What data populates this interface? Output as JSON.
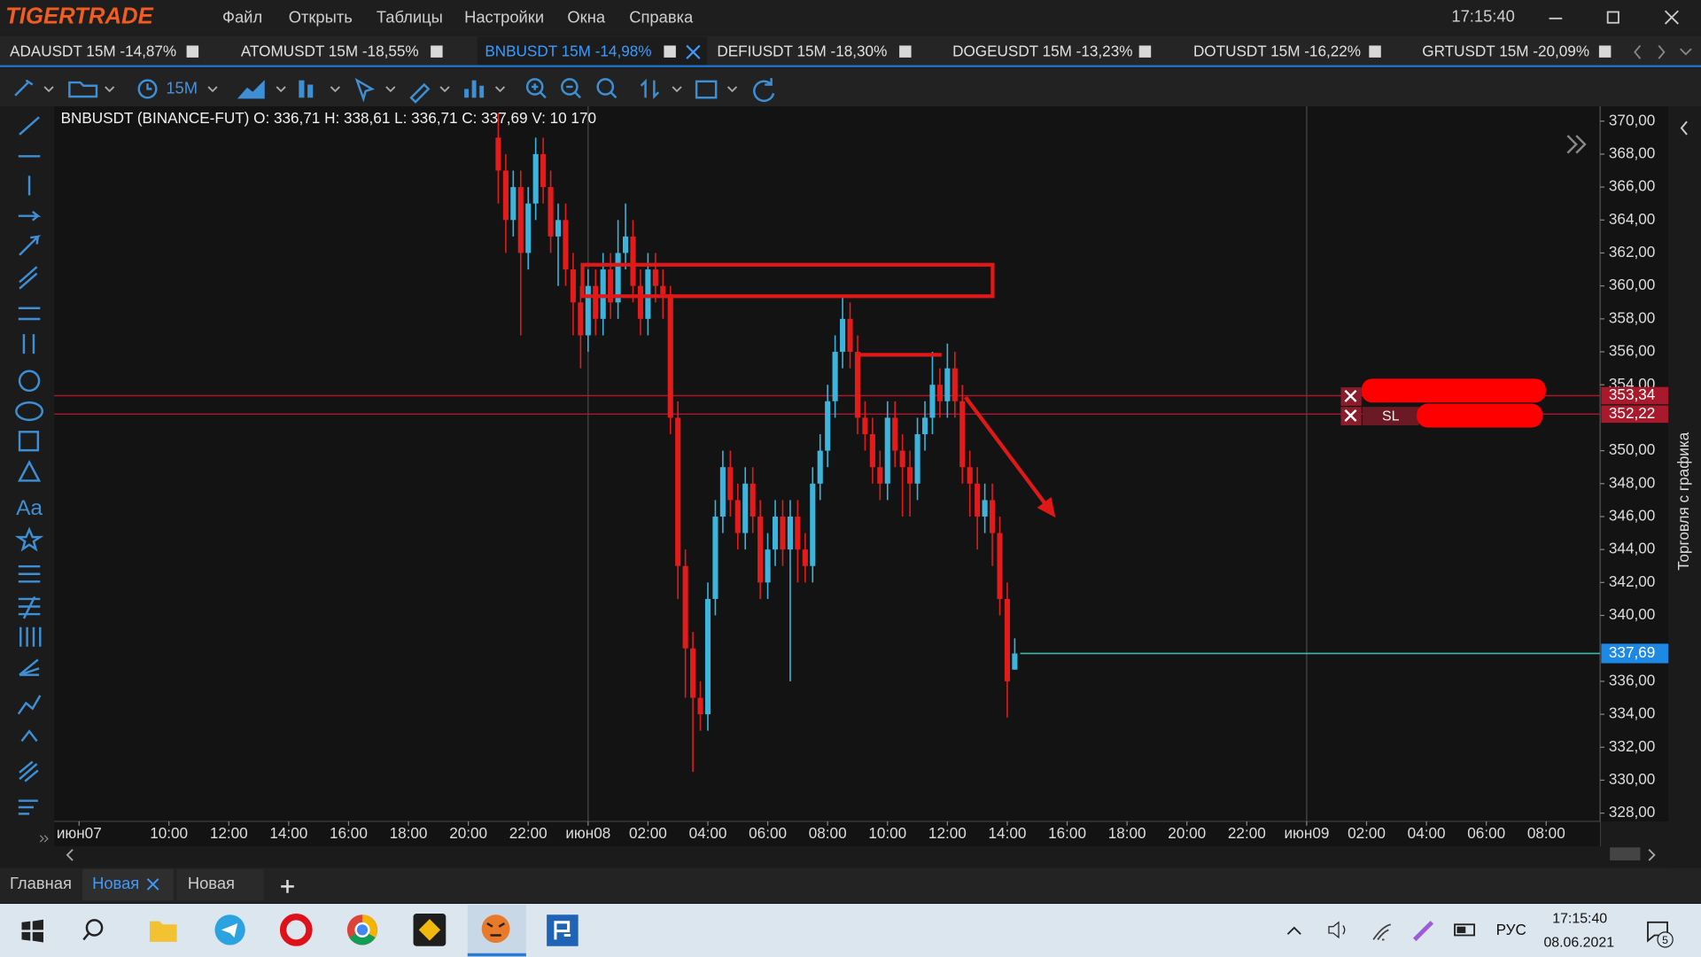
{
  "app": {
    "logo": "TIGERTRADE",
    "menu": [
      "Файл",
      "Открыть",
      "Таблицы",
      "Настройки",
      "Окна",
      "Справка"
    ],
    "clock": "17:15:40"
  },
  "tabs": [
    "ADAUSDT 15M -14,87%",
    "ATOMUSDT 15M -18,55%",
    "BNBUSDT 15M -14,98%",
    "DEFIUSDT 15M -18,30%",
    "DOGEUSDT 15M -13,23%",
    "DOTUSDT 15M -16,22%",
    "GRTUSDT 15M -20,09%"
  ],
  "toolbar": {
    "timeframe": "15M"
  },
  "chart_data": {
    "type": "candlestick",
    "title": "BNBUSDT (BINANCE-FUT)  O: 336,71  H: 338,61  L: 336,71  C: 337,69  V: 10 170",
    "up_color": "#3cb4dc",
    "down_color": "#e31b1b",
    "x": [
      21,
      21.25,
      21.5,
      21.75,
      22,
      22.25,
      22.5,
      22.75,
      23,
      23.25,
      23.5,
      23.75,
      24,
      24.25,
      24.5,
      24.75,
      25,
      25.25,
      25.5,
      25.75,
      26,
      26.25,
      26.5,
      26.75,
      27,
      27.25,
      27.5,
      27.75,
      28,
      28.25,
      28.5,
      28.75,
      29,
      29.25,
      29.5,
      29.75,
      30,
      30.25,
      30.5,
      30.75,
      31,
      31.25,
      31.5,
      31.75,
      32,
      32.25,
      32.5,
      32.75,
      33,
      33.25,
      33.5,
      33.75,
      34,
      34.25,
      34.5,
      34.75,
      35,
      35.25,
      35.5,
      35.75,
      36,
      36.25,
      36.5,
      36.75,
      37,
      37.25,
      37.5,
      37.75,
      38,
      38.25
    ],
    "ohlc": [
      [
        369,
        370.5,
        365,
        367
      ],
      [
        367,
        368,
        362,
        364
      ],
      [
        364,
        367,
        363,
        366
      ],
      [
        366,
        367,
        357,
        362
      ],
      [
        362,
        366,
        361,
        365
      ],
      [
        365,
        369,
        364,
        368
      ],
      [
        368,
        369,
        365,
        366
      ],
      [
        366,
        367,
        362,
        363
      ],
      [
        363,
        365,
        360,
        364
      ],
      [
        364,
        365,
        360,
        361
      ],
      [
        361,
        362,
        357,
        359
      ],
      [
        359,
        360,
        355,
        357
      ],
      [
        357,
        361,
        356,
        360
      ],
      [
        360,
        361,
        357,
        358
      ],
      [
        358,
        362,
        357,
        361
      ],
      [
        361,
        362,
        358,
        359
      ],
      [
        359,
        364,
        358,
        362
      ],
      [
        362,
        365,
        361,
        363
      ],
      [
        363,
        364,
        359,
        360
      ],
      [
        360,
        361,
        357,
        358
      ],
      [
        358,
        362,
        357,
        361
      ],
      [
        361,
        362,
        359,
        360
      ],
      [
        360,
        361,
        358,
        359.5
      ],
      [
        359.5,
        360,
        351,
        352
      ],
      [
        352,
        353,
        341,
        343
      ],
      [
        343,
        344,
        335,
        338
      ],
      [
        338,
        339,
        330.5,
        335
      ],
      [
        335,
        336,
        333,
        334
      ],
      [
        334,
        342,
        333,
        341
      ],
      [
        341,
        347,
        340,
        346
      ],
      [
        346,
        350,
        345,
        349
      ],
      [
        349,
        350,
        346,
        347
      ],
      [
        347,
        348,
        344,
        345
      ],
      [
        345,
        349,
        344,
        348
      ],
      [
        348,
        349,
        345,
        346
      ],
      [
        346,
        347,
        341,
        342
      ],
      [
        342,
        345,
        341,
        344
      ],
      [
        344,
        347,
        343,
        346
      ],
      [
        346,
        347,
        343,
        344
      ],
      [
        344,
        347,
        336,
        346
      ],
      [
        346,
        347,
        342,
        344
      ],
      [
        344,
        345,
        342,
        343
      ],
      [
        343,
        349,
        342,
        348
      ],
      [
        348,
        351,
        347,
        350
      ],
      [
        350,
        354,
        349,
        353
      ],
      [
        353,
        357,
        352,
        356
      ],
      [
        356,
        359.3,
        355,
        358
      ],
      [
        358,
        359,
        355,
        356
      ],
      [
        356,
        357,
        351,
        352
      ],
      [
        352,
        353,
        350,
        351
      ],
      [
        351,
        352,
        348,
        349
      ],
      [
        349,
        350,
        347,
        348
      ],
      [
        348,
        353,
        347,
        352
      ],
      [
        352,
        353,
        349,
        350
      ],
      [
        350,
        351,
        346,
        349
      ],
      [
        349,
        350,
        346,
        348
      ],
      [
        348,
        352,
        347,
        351
      ],
      [
        351,
        353,
        350,
        352
      ],
      [
        352,
        356,
        351,
        354
      ],
      [
        354,
        355,
        352,
        353
      ],
      [
        353,
        356.5,
        352,
        355
      ],
      [
        355,
        356,
        352,
        353
      ],
      [
        353,
        354,
        348,
        349
      ],
      [
        349,
        350,
        346,
        348
      ],
      [
        348,
        349,
        344,
        346
      ],
      [
        346,
        348,
        345,
        347
      ],
      [
        347,
        348,
        343,
        345
      ],
      [
        345,
        346,
        340,
        341
      ],
      [
        341,
        342,
        333.8,
        336
      ],
      [
        336.71,
        338.61,
        336.71,
        337.69
      ]
    ],
    "xlim": [
      6.17,
      57.8
    ],
    "xticks": [
      {
        "value": 7,
        "label": "июн07"
      },
      {
        "value": 10,
        "label": "10:00"
      },
      {
        "value": 12,
        "label": "12:00"
      },
      {
        "value": 14,
        "label": "14:00"
      },
      {
        "value": 16,
        "label": "16:00"
      },
      {
        "value": 18,
        "label": "18:00"
      },
      {
        "value": 20,
        "label": "20:00"
      },
      {
        "value": 22,
        "label": "22:00"
      },
      {
        "value": 24,
        "label": "июн08"
      },
      {
        "value": 26,
        "label": "02:00"
      },
      {
        "value": 28,
        "label": "04:00"
      },
      {
        "value": 30,
        "label": "06:00"
      },
      {
        "value": 32,
        "label": "08:00"
      },
      {
        "value": 34,
        "label": "10:00"
      },
      {
        "value": 36,
        "label": "12:00"
      },
      {
        "value": 38,
        "label": "14:00"
      },
      {
        "value": 40,
        "label": "16:00"
      },
      {
        "value": 42,
        "label": "18:00"
      },
      {
        "value": 44,
        "label": "20:00"
      },
      {
        "value": 46,
        "label": "22:00"
      },
      {
        "value": 48,
        "label": "июн09"
      },
      {
        "value": 50,
        "label": "02:00"
      },
      {
        "value": 52,
        "label": "04:00"
      },
      {
        "value": 54,
        "label": "06:00"
      },
      {
        "value": 56,
        "label": "08:00"
      }
    ],
    "ylim": [
      327.5,
      370.9
    ],
    "yticks": [
      {
        "value": 370,
        "label": "370,00"
      },
      {
        "value": 368,
        "label": "368,00"
      },
      {
        "value": 366,
        "label": "366,00"
      },
      {
        "value": 364,
        "label": "364,00"
      },
      {
        "value": 362,
        "label": "362,00"
      },
      {
        "value": 360,
        "label": "360,00"
      },
      {
        "value": 358,
        "label": "358,00"
      },
      {
        "value": 356,
        "label": "356,00"
      },
      {
        "value": 354,
        "label": "354,00"
      },
      {
        "value": 350,
        "label": "350,00"
      },
      {
        "value": 348,
        "label": "348,00"
      },
      {
        "value": 346,
        "label": "346,00"
      },
      {
        "value": 344,
        "label": "344,00"
      },
      {
        "value": 342,
        "label": "342,00"
      },
      {
        "value": 340,
        "label": "340,00"
      },
      {
        "value": 336,
        "label": "336,00"
      },
      {
        "value": 334,
        "label": "334,00"
      },
      {
        "value": 332,
        "label": "332,00"
      },
      {
        "value": 330,
        "label": "330,00"
      },
      {
        "value": 328,
        "label": "328,00"
      }
    ],
    "levels": [
      {
        "value": 353.34,
        "label": "353,34"
      },
      {
        "value": 352.22,
        "label": "352,22"
      }
    ],
    "level_color": "#a8192b",
    "last_price": {
      "value": 337.69,
      "label": "337,69"
    },
    "last_price_color": "#3fb9aa",
    "last_label_color": "#1e88e5"
  },
  "order_panel": {
    "sl": "SL"
  },
  "side_panel": "Торговля с графика",
  "bottom_tabs": [
    "Главная",
    "Новая",
    "Новая"
  ],
  "taskbar": {
    "language": "РУС",
    "time": "17:15:40",
    "date": "08.06.2021",
    "notifications": 5
  }
}
